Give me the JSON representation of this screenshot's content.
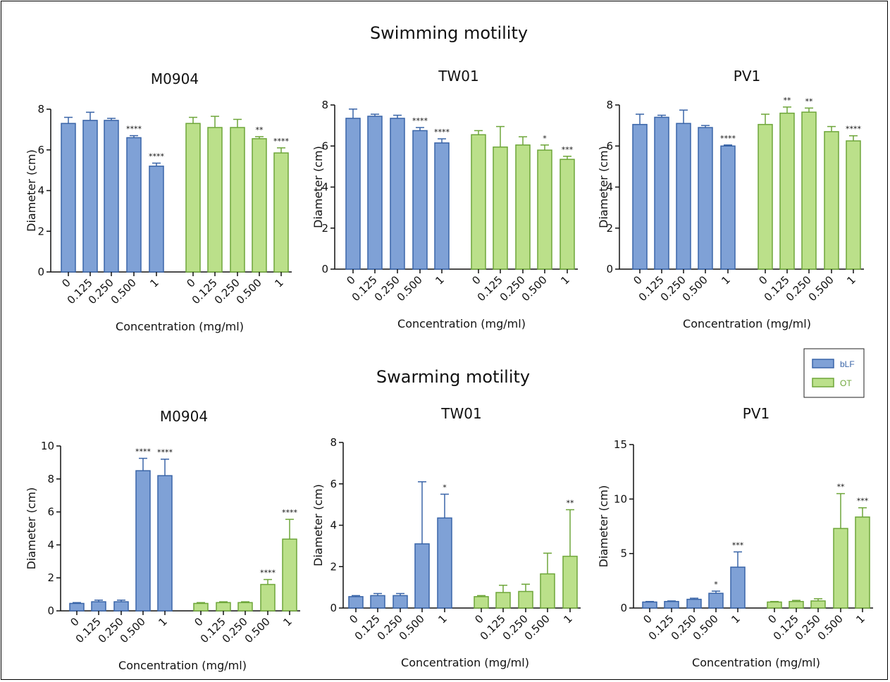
{
  "figure": {
    "sections": [
      {
        "title": "Swimming motility"
      },
      {
        "title": "Swarming motility"
      }
    ],
    "legend": [
      {
        "label": "bLF",
        "fill": "#7fa1d6",
        "stroke": "#3a65a8"
      },
      {
        "label": "OT",
        "fill": "#bbe08a",
        "stroke": "#6ea63a"
      }
    ]
  },
  "chart_data": [
    {
      "type": "bar",
      "section": "Swimming motility",
      "title": "M0904",
      "xlabel": "Concentration (mg/ml)",
      "ylabel": "Diameter (cm)",
      "categories": [
        "0",
        "0.125",
        "0.250",
        "0.500",
        "1"
      ],
      "ylim": [
        0,
        8
      ],
      "yticks": [
        "0",
        "2",
        "4",
        "6",
        "8"
      ],
      "series": [
        {
          "name": "bLF",
          "values": [
            7.3,
            7.45,
            7.45,
            6.6,
            5.2
          ],
          "errors": [
            0.3,
            0.4,
            0.1,
            0.1,
            0.15
          ],
          "sig": [
            "",
            "",
            "",
            "****",
            "****"
          ]
        },
        {
          "name": "OT",
          "values": [
            7.3,
            7.1,
            7.1,
            6.55,
            5.85
          ],
          "errors": [
            0.3,
            0.55,
            0.4,
            0.1,
            0.25
          ],
          "sig": [
            "",
            "",
            "",
            "**",
            "****"
          ]
        }
      ]
    },
    {
      "type": "bar",
      "section": "Swimming motility",
      "title": "TW01",
      "xlabel": "Concentration (mg/ml)",
      "ylabel": "Diameter (cm)",
      "categories": [
        "0",
        "0.125",
        "0.250",
        "0.500",
        "1"
      ],
      "ylim": [
        0,
        8
      ],
      "yticks": [
        "0",
        "2",
        "4",
        "6",
        "8"
      ],
      "series": [
        {
          "name": "bLF",
          "values": [
            7.35,
            7.45,
            7.35,
            6.75,
            6.15
          ],
          "errors": [
            0.45,
            0.1,
            0.15,
            0.15,
            0.2
          ],
          "sig": [
            "",
            "",
            "",
            "****",
            "****"
          ]
        },
        {
          "name": "OT",
          "values": [
            6.55,
            5.95,
            6.05,
            5.8,
            5.35
          ],
          "errors": [
            0.2,
            1.0,
            0.4,
            0.25,
            0.15
          ],
          "sig": [
            "",
            "",
            "",
            "*",
            "***"
          ]
        }
      ]
    },
    {
      "type": "bar",
      "section": "Swimming motility",
      "title": "PV1",
      "xlabel": "Concentration (mg/ml)",
      "ylabel": "Diameter (cm)",
      "categories": [
        "0",
        "0.125",
        "0.250",
        "0.500",
        "1"
      ],
      "ylim": [
        0,
        8
      ],
      "yticks": [
        "0",
        "2",
        "4",
        "6",
        "8"
      ],
      "series": [
        {
          "name": "bLF",
          "values": [
            7.05,
            7.4,
            7.1,
            6.9,
            6.0
          ],
          "errors": [
            0.5,
            0.1,
            0.65,
            0.1,
            0.05
          ],
          "sig": [
            "",
            "",
            "",
            "",
            "****"
          ]
        },
        {
          "name": "OT",
          "values": [
            7.05,
            7.6,
            7.65,
            6.7,
            6.25
          ],
          "errors": [
            0.5,
            0.3,
            0.2,
            0.25,
            0.25
          ],
          "sig": [
            "",
            "**",
            "**",
            "",
            "****"
          ]
        }
      ]
    },
    {
      "type": "bar",
      "section": "Swarming motility",
      "title": "M0904",
      "xlabel": "Concentration (mg/ml)",
      "ylabel": "Diameter (cm)",
      "categories": [
        "0",
        "0.125",
        "0.250",
        "0.500",
        "1"
      ],
      "ylim": [
        0,
        10
      ],
      "yticks": [
        "0",
        "2",
        "4",
        "6",
        "8",
        "10"
      ],
      "series": [
        {
          "name": "bLF",
          "values": [
            0.45,
            0.55,
            0.55,
            8.5,
            8.2
          ],
          "errors": [
            0.05,
            0.1,
            0.1,
            0.75,
            1.0
          ],
          "sig": [
            "",
            "",
            "",
            "****",
            "****"
          ]
        },
        {
          "name": "OT",
          "values": [
            0.45,
            0.5,
            0.5,
            1.6,
            4.35
          ],
          "errors": [
            0.05,
            0.05,
            0.05,
            0.3,
            1.2
          ],
          "sig": [
            "",
            "",
            "",
            "****",
            "****"
          ]
        }
      ]
    },
    {
      "type": "bar",
      "section": "Swarming motility",
      "title": "TW01",
      "xlabel": "Concentration (mg/ml)",
      "ylabel": "Diameter (cm)",
      "categories": [
        "0",
        "0.125",
        "0.250",
        "0.500",
        "1"
      ],
      "ylim": [
        0,
        8
      ],
      "yticks": [
        "0",
        "2",
        "4",
        "6",
        "8"
      ],
      "series": [
        {
          "name": "bLF",
          "values": [
            0.55,
            0.6,
            0.6,
            3.1,
            4.35
          ],
          "errors": [
            0.05,
            0.1,
            0.1,
            3.0,
            1.15
          ],
          "sig": [
            "",
            "",
            "",
            "",
            "*"
          ]
        },
        {
          "name": "OT",
          "values": [
            0.55,
            0.75,
            0.8,
            1.65,
            2.5
          ],
          "errors": [
            0.05,
            0.35,
            0.35,
            1.0,
            2.25
          ],
          "sig": [
            "",
            "",
            "",
            "",
            "**"
          ]
        }
      ]
    },
    {
      "type": "bar",
      "section": "Swarming motility",
      "title": "PV1",
      "xlabel": "Concentration (mg/ml)",
      "ylabel": "Diameter (cm)",
      "categories": [
        "0",
        "0.125",
        "0.250",
        "0.500",
        "1"
      ],
      "ylim": [
        0,
        15
      ],
      "yticks": [
        "0",
        "5",
        "10",
        "15"
      ],
      "series": [
        {
          "name": "bLF",
          "values": [
            0.55,
            0.6,
            0.8,
            1.35,
            3.75
          ],
          "errors": [
            0.05,
            0.05,
            0.1,
            0.2,
            1.4
          ],
          "sig": [
            "",
            "",
            "",
            "*",
            "***"
          ]
        },
        {
          "name": "OT",
          "values": [
            0.55,
            0.6,
            0.65,
            7.3,
            8.35
          ],
          "errors": [
            0.05,
            0.1,
            0.2,
            3.2,
            0.85
          ],
          "sig": [
            "",
            "",
            "",
            "**",
            "***"
          ]
        }
      ]
    }
  ]
}
